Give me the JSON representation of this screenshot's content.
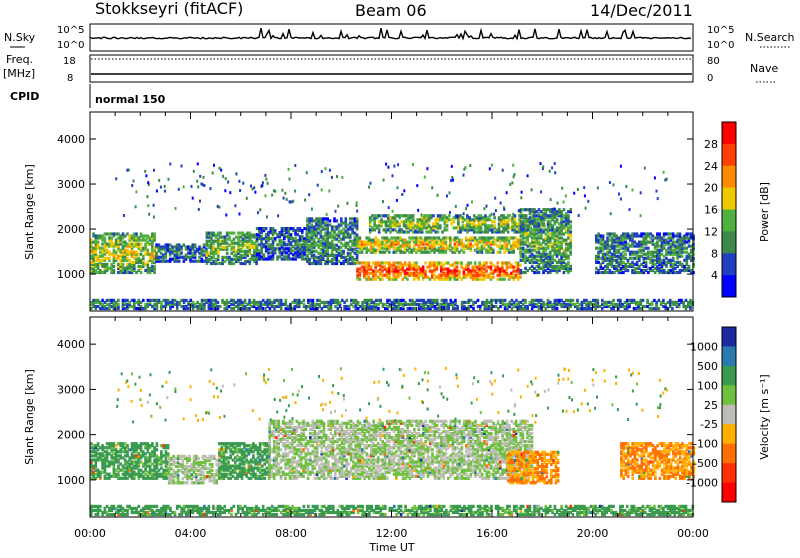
{
  "header": {
    "station": "Stokkseyri (fitACF)",
    "beam": "Beam 06",
    "date": "14/Dec/2011"
  },
  "nsky_panel": {
    "left_label": "N.Sky",
    "left_ticks": [
      "10^5",
      "10^0"
    ],
    "right_ticks": [
      "10^5",
      "10^0"
    ],
    "right_label": "N.Search"
  },
  "freq_panel": {
    "left_label_1": "Freq.",
    "left_label_2": "[MHz]",
    "left_ticks": [
      "18",
      "8"
    ],
    "right_ticks": [
      "80",
      "0"
    ],
    "right_label": "Nave"
  },
  "cpid_panel": {
    "label": "CPID",
    "mode": "normal 150"
  },
  "chart_data": [
    {
      "type": "heatmap",
      "title": "",
      "xlabel": "Time UT",
      "ylabel": "Slant Range [km]",
      "x_ticks": [
        "00:00",
        "04:00",
        "08:00",
        "12:00",
        "16:00",
        "20:00",
        "00:00"
      ],
      "xlim_hours": [
        0,
        24
      ],
      "y_ticks": [
        "1000",
        "2000",
        "3000",
        "4000"
      ],
      "ylim": [
        180,
        4600
      ],
      "colorbar_label": "Power [dB]",
      "colorbar_ticks": [
        "4",
        "8",
        "12",
        "16",
        "20",
        "24",
        "28"
      ],
      "colorbar_colors": [
        "#0000ff",
        "#2040c0",
        "#3c8a4a",
        "#50b040",
        "#f0c800",
        "#ff8c00",
        "#ff4000",
        "#ff0000"
      ],
      "regions": [
        {
          "t0": 0.0,
          "t1": 2.6,
          "r0": 1000,
          "r1": 1900,
          "level": 0.55
        },
        {
          "t0": 2.6,
          "t1": 4.6,
          "r0": 1250,
          "r1": 1650,
          "level": 0.25
        },
        {
          "t0": 4.6,
          "t1": 6.6,
          "r0": 1200,
          "r1": 1900,
          "level": 0.45
        },
        {
          "t0": 6.6,
          "t1": 8.6,
          "r0": 1300,
          "r1": 2000,
          "level": 0.25
        },
        {
          "t0": 8.6,
          "t1": 10.6,
          "r0": 1200,
          "r1": 2200,
          "level": 0.35
        },
        {
          "t0": 10.6,
          "t1": 17.1,
          "r0": 850,
          "r1": 1250,
          "level": 0.95
        },
        {
          "t0": 10.6,
          "t1": 17.1,
          "r0": 1450,
          "r1": 1800,
          "level": 0.65
        },
        {
          "t0": 11.1,
          "t1": 18.1,
          "r0": 1900,
          "r1": 2300,
          "level": 0.5
        },
        {
          "t0": 17.1,
          "t1": 19.1,
          "r0": 1000,
          "r1": 2400,
          "level": 0.4
        },
        {
          "t0": 20.1,
          "t1": 24.0,
          "r0": 1000,
          "r1": 1900,
          "level": 0.3
        },
        {
          "t0": 0.0,
          "t1": 24.0,
          "r0": 200,
          "r1": 400,
          "level": 0.3
        }
      ]
    },
    {
      "type": "heatmap",
      "title": "",
      "xlabel": "Time UT",
      "ylabel": "Slant Range [km]",
      "x_ticks": [
        "00:00",
        "04:00",
        "08:00",
        "12:00",
        "16:00",
        "20:00",
        "00:00"
      ],
      "xlim_hours": [
        0,
        24
      ],
      "y_ticks": [
        "1000",
        "2000",
        "3000",
        "4000"
      ],
      "ylim": [
        180,
        4600
      ],
      "colorbar_label": "Velocity [m s⁻¹]",
      "colorbar_ticks": [
        "1000",
        "500",
        "100",
        "25",
        "-25",
        "-100",
        "-500",
        "-1000"
      ],
      "colorbar_colors": [
        "#1a2aa0",
        "#2a7ab0",
        "#3a9a50",
        "#70c040",
        "#bdbdb5",
        "#ffb000",
        "#ff7000",
        "#ff3000",
        "#ff0000"
      ],
      "regions": [
        {
          "t0": 0.0,
          "t1": 3.1,
          "r0": 1000,
          "r1": 1800,
          "vel": 100
        },
        {
          "t0": 3.1,
          "t1": 5.1,
          "r0": 900,
          "r1": 1500,
          "vel": 0
        },
        {
          "t0": 5.1,
          "t1": 7.1,
          "r0": 1000,
          "r1": 1800,
          "vel": 100
        },
        {
          "t0": 7.1,
          "t1": 17.6,
          "r0": 1000,
          "r1": 2300,
          "vel": 0
        },
        {
          "t0": 16.6,
          "t1": 18.6,
          "r0": 900,
          "r1": 1600,
          "vel": -300
        },
        {
          "t0": 21.1,
          "t1": 24.0,
          "r0": 1000,
          "r1": 1800,
          "vel": -300
        },
        {
          "t0": 0.0,
          "t1": 24.0,
          "r0": 200,
          "r1": 400,
          "vel": 100
        }
      ]
    }
  ]
}
